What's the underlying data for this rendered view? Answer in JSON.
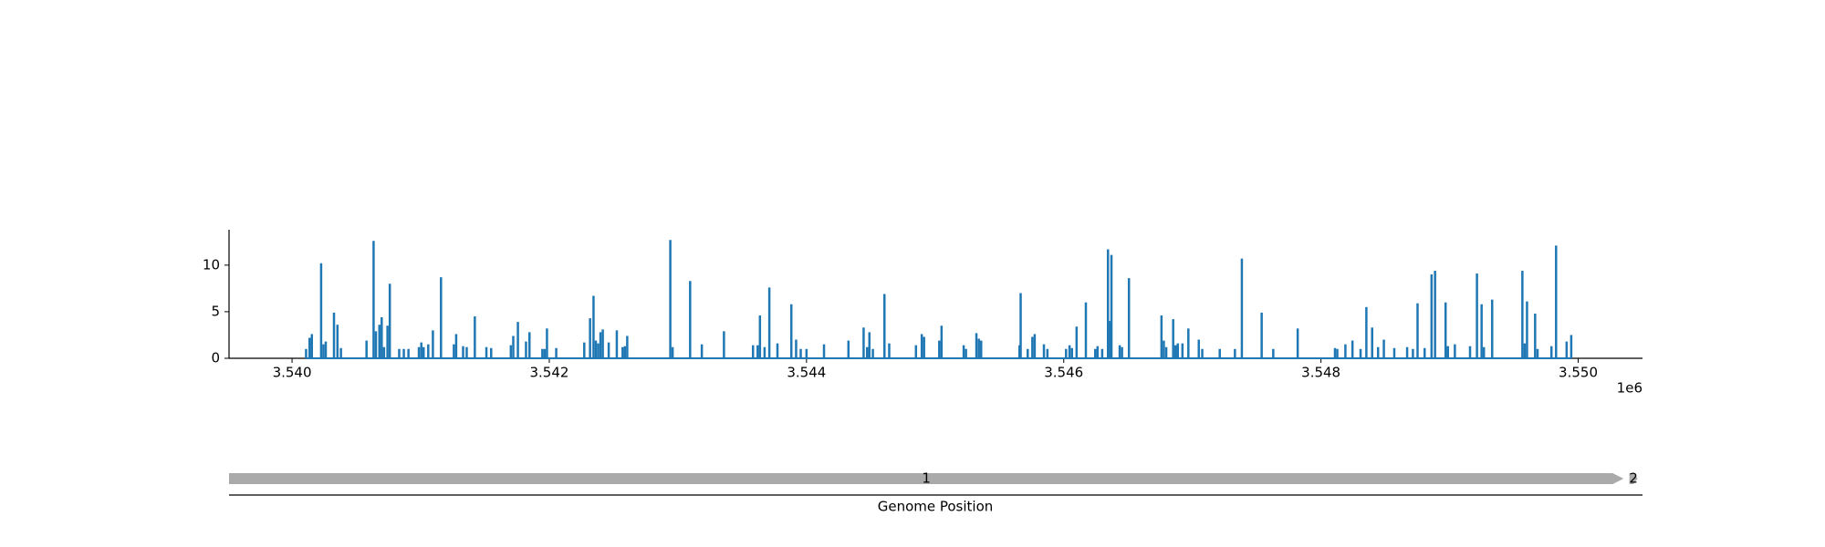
{
  "chart_data": {
    "type": "bar",
    "color": "#1f77b4",
    "xlim": [
      3539510,
      3550500
    ],
    "ylim": [
      0,
      13.8
    ],
    "xticks": [
      {
        "value": 3540000,
        "label": "3.540"
      },
      {
        "value": 3542000,
        "label": "3.542"
      },
      {
        "value": 3544000,
        "label": "3.544"
      },
      {
        "value": 3546000,
        "label": "3.546"
      },
      {
        "value": 3548000,
        "label": "3.548"
      },
      {
        "value": 3550000,
        "label": "3.550"
      }
    ],
    "x_offset_label": "1e6",
    "yticks": [
      0,
      5,
      10
    ],
    "x": [
      3540109,
      3540136,
      3540154,
      3540226,
      3540244,
      3540262,
      3540326,
      3540353,
      3540380,
      3540579,
      3540634,
      3540652,
      3540679,
      3540697,
      3540715,
      3540742,
      3540760,
      3540833,
      3540869,
      3540905,
      3540986,
      3541005,
      3541023,
      3541059,
      3541095,
      3541158,
      3541258,
      3541276,
      3541330,
      3541358,
      3541421,
      3541511,
      3541548,
      3541701,
      3541720,
      3541756,
      3541819,
      3541846,
      3541946,
      3541964,
      3541982,
      3542054,
      3542272,
      3542317,
      3542344,
      3542362,
      3542380,
      3542398,
      3542416,
      3542462,
      3542525,
      3542570,
      3542588,
      3542606,
      3542941,
      3542959,
      3543095,
      3543186,
      3543358,
      3543584,
      3543620,
      3543638,
      3543674,
      3543711,
      3543774,
      3543882,
      3543919,
      3543955,
      3544000,
      3544136,
      3544326,
      3544444,
      3544471,
      3544489,
      3544516,
      3544606,
      3544643,
      3544851,
      3544896,
      3544914,
      3545032,
      3545050,
      3545222,
      3545240,
      3545321,
      3545340,
      3545358,
      3545656,
      3545665,
      3545720,
      3545756,
      3545774,
      3545846,
      3545873,
      3546018,
      3546045,
      3546064,
      3546100,
      3546172,
      3546245,
      3546263,
      3546299,
      3546344,
      3546362,
      3546371,
      3546435,
      3546453,
      3546507,
      3546760,
      3546778,
      3546797,
      3546851,
      3546869,
      3546887,
      3546923,
      3546969,
      3547050,
      3547077,
      3547213,
      3547331,
      3547385,
      3547539,
      3547629,
      3547819,
      3548109,
      3548127,
      3548190,
      3548245,
      3548308,
      3548353,
      3548398,
      3548444,
      3548489,
      3548570,
      3548670,
      3548715,
      3548751,
      3548806,
      3548860,
      3548887,
      3548969,
      3548987,
      3549041,
      3549159,
      3549213,
      3549249,
      3549267,
      3549331,
      3549566,
      3549584,
      3549602,
      3549665,
      3549684,
      3549792,
      3549828,
      3549910,
      3549946
    ],
    "values": [
      1,
      2.2,
      2.6,
      10.2,
      1.5,
      1.8,
      4.9,
      3.6,
      1.1,
      1.9,
      12.6,
      2.9,
      3.6,
      4.4,
      1.2,
      3.5,
      8,
      1,
      1,
      1,
      1.2,
      1.7,
      1.2,
      1.5,
      3,
      8.7,
      1.5,
      2.6,
      1.3,
      1.2,
      4.5,
      1.2,
      1.1,
      1.4,
      2.4,
      3.9,
      1.8,
      2.8,
      1,
      1,
      3.2,
      1.1,
      1.7,
      4.3,
      6.7,
      1.9,
      1.6,
      2.8,
      3.1,
      1.7,
      3,
      1.2,
      1.3,
      2.4,
      12.7,
      1.2,
      8.3,
      1.5,
      2.9,
      1.4,
      1.4,
      4.6,
      1.2,
      7.6,
      1.6,
      5.8,
      2,
      1,
      1,
      1.5,
      1.9,
      3.3,
      1.2,
      2.8,
      1,
      6.9,
      1.6,
      1.4,
      2.6,
      2.3,
      1.9,
      3.5,
      1.4,
      1,
      2.7,
      2.1,
      1.9,
      1.4,
      7,
      1,
      2.3,
      2.6,
      1.5,
      1,
      1,
      1.4,
      1.1,
      3.4,
      6,
      1,
      1.3,
      1,
      11.7,
      4,
      11.1,
      1.4,
      1.2,
      8.6,
      4.6,
      1.9,
      1.2,
      4.2,
      1.4,
      1.6,
      1.6,
      3.2,
      2,
      1,
      1,
      1,
      10.7,
      4.9,
      1,
      3.2,
      1.1,
      1,
      1.5,
      1.9,
      1,
      5.5,
      3.3,
      1.2,
      2,
      1.1,
      1.2,
      1,
      5.9,
      1.1,
      9,
      9.4,
      6,
      1.3,
      1.5,
      1.3,
      9.1,
      5.8,
      1.2,
      6.3,
      9.4,
      1.6,
      6.1,
      4.8,
      1,
      1.3,
      12.1,
      1.8,
      2.5
    ],
    "features": [
      {
        "label": "1",
        "start": 3539510,
        "end": 3550353,
        "color": "#aaaaaa"
      },
      {
        "label": "2",
        "start": 3550398,
        "end": 3550462,
        "color": "#aaaaaa"
      }
    ],
    "xlabel": "Genome Position"
  }
}
